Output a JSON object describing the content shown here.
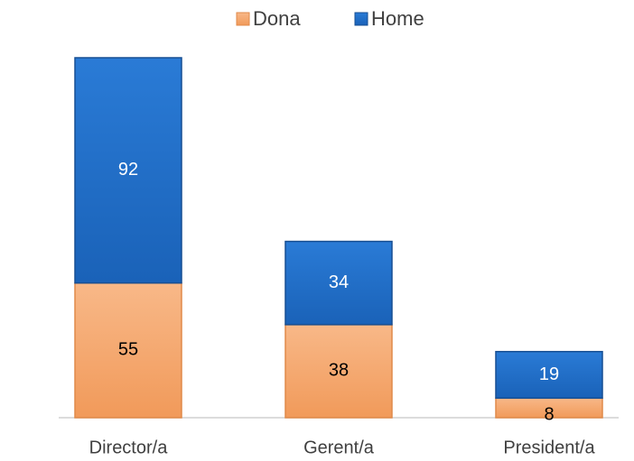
{
  "chart_data": {
    "type": "stacked_bar",
    "categories": [
      "Director/a",
      "Gerent/a",
      "President/a"
    ],
    "series": [
      {
        "name": "Dona",
        "color": "#f4a46a",
        "values": [
          55,
          38,
          8
        ]
      },
      {
        "name": "Home",
        "color": "#1e6cc4",
        "values": [
          92,
          34,
          19
        ]
      }
    ],
    "legend": "top"
  }
}
